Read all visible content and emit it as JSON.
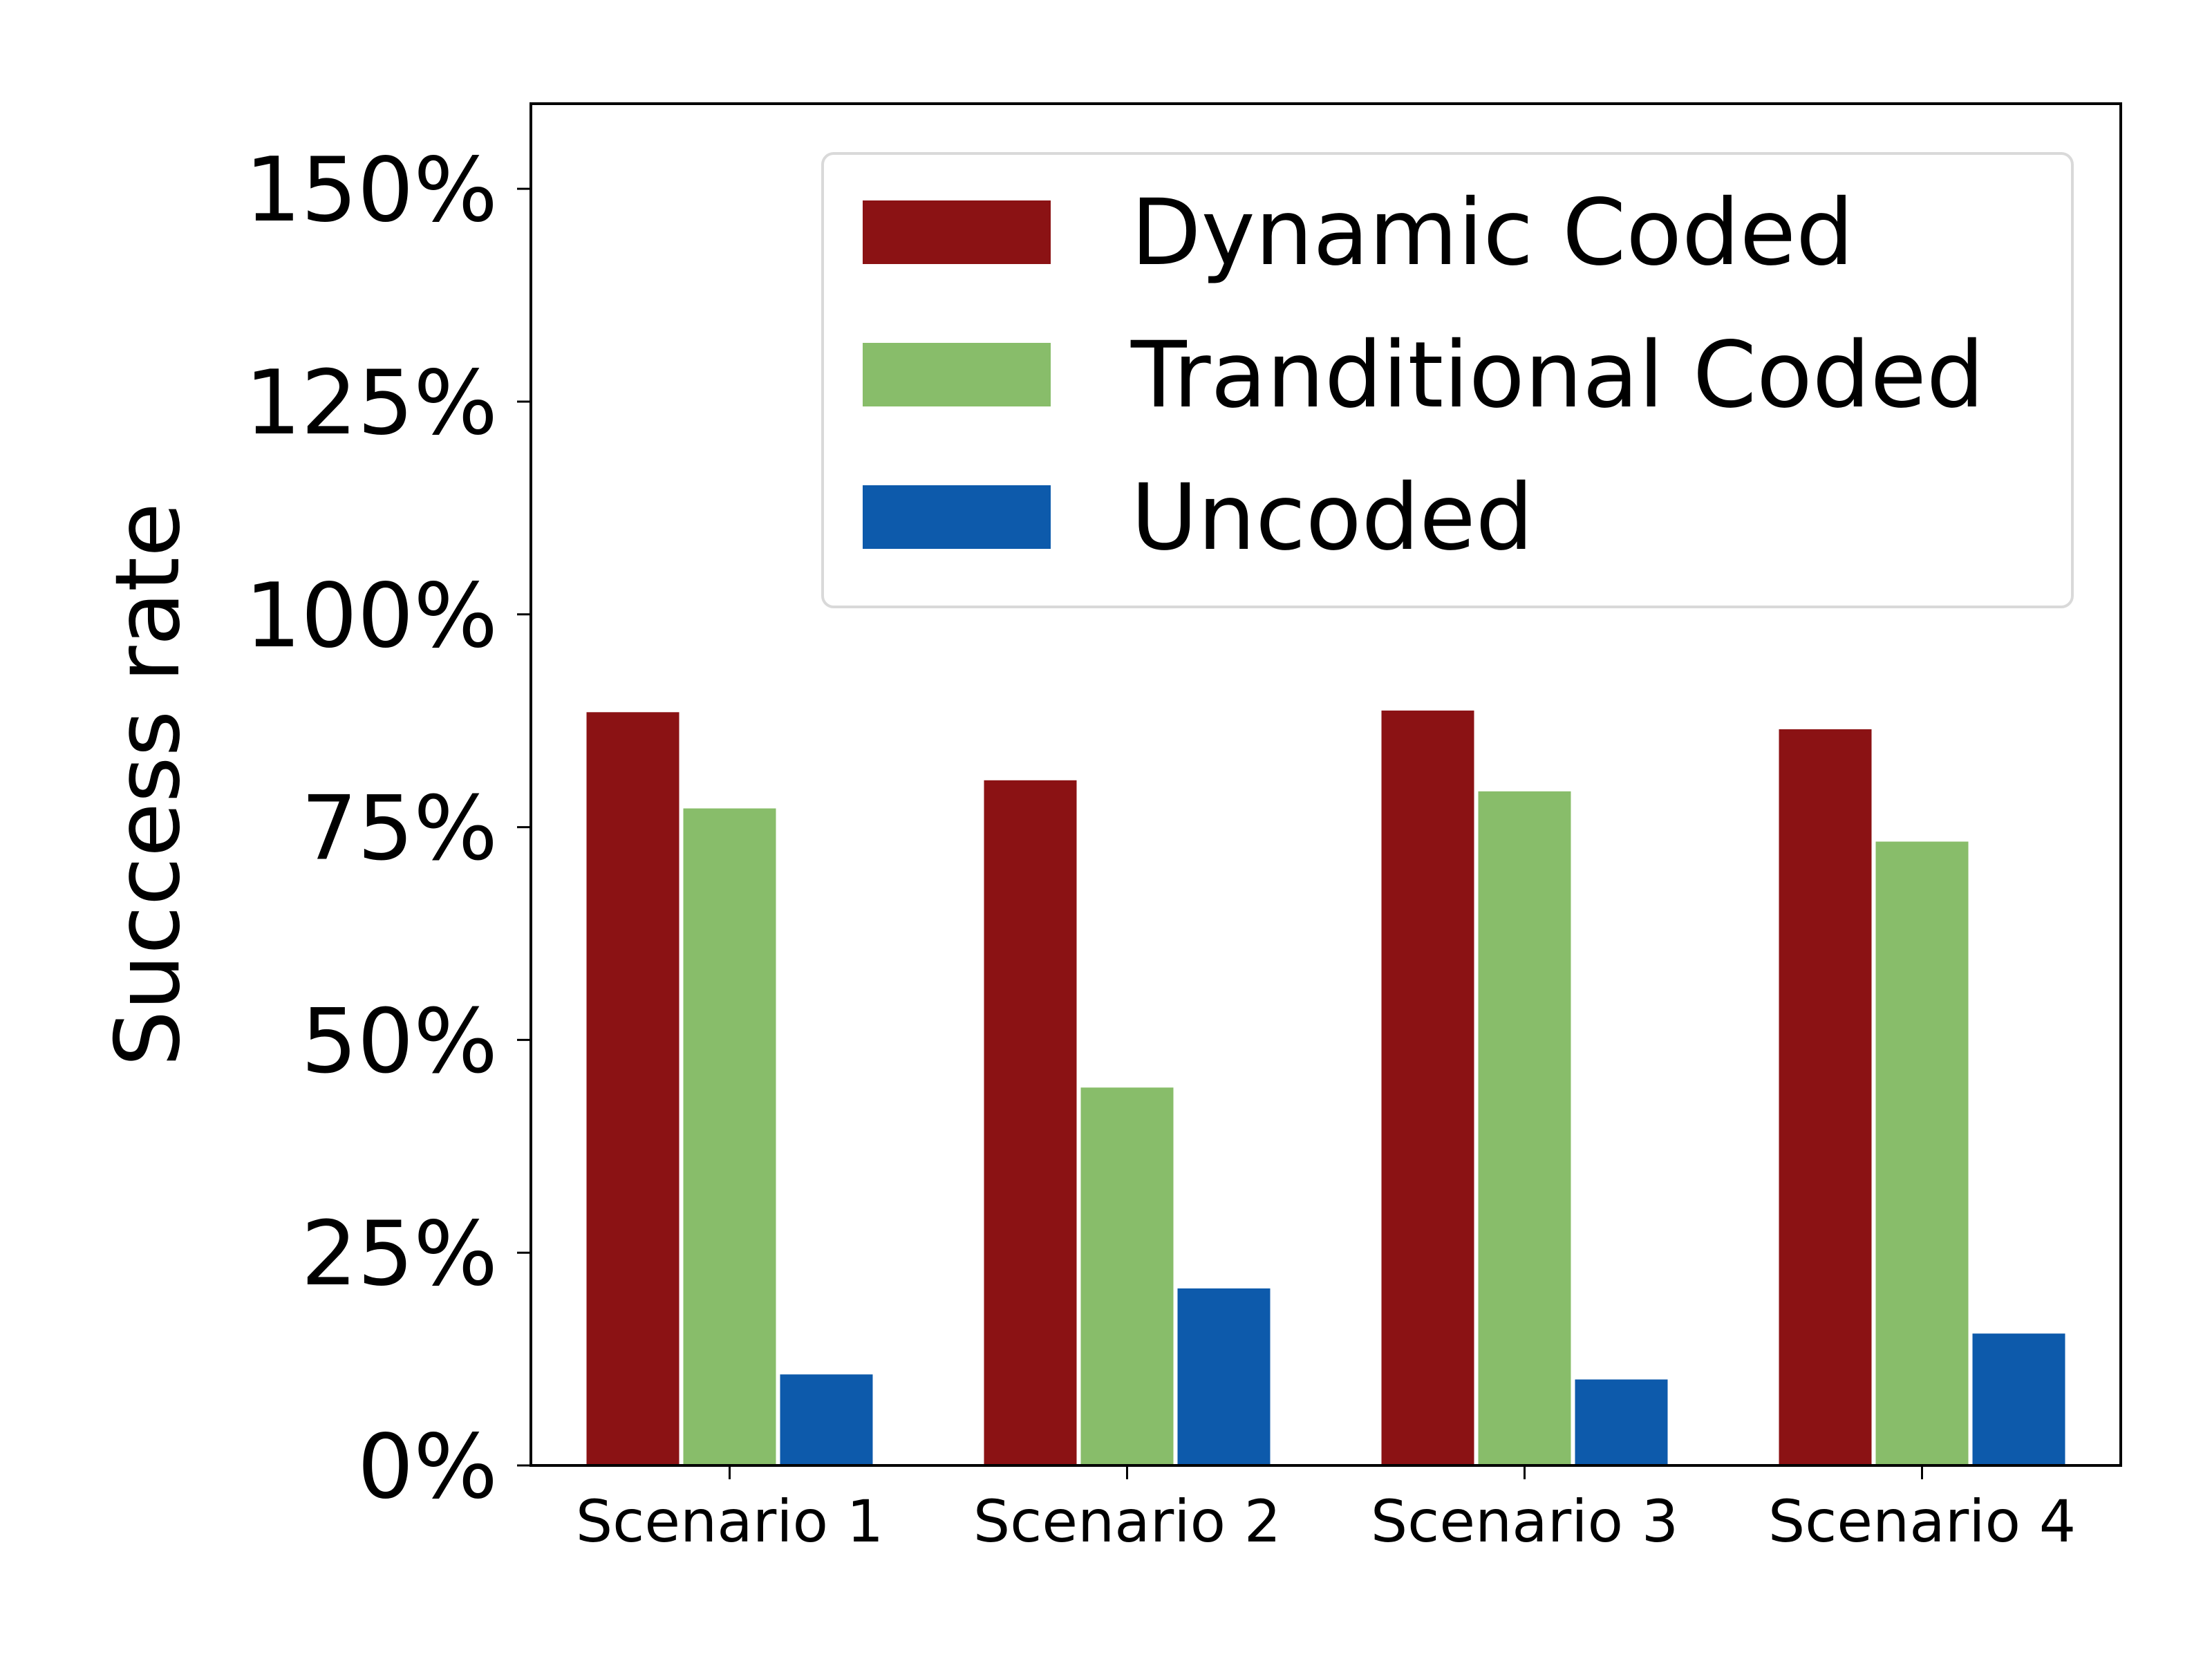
{
  "chart_data": {
    "type": "bar",
    "ylabel": "Success rate",
    "xlabel": "",
    "title": "",
    "categories": [
      "Scenario 1",
      "Scenario 2",
      "Scenario 3",
      "Scenario 4"
    ],
    "ylim": [
      0,
      1.6
    ],
    "yticks": [
      0,
      0.25,
      0.5,
      0.75,
      1.0,
      1.25,
      1.5
    ],
    "ytick_labels": [
      "0%",
      "25%",
      "50%",
      "75%",
      "100%",
      "125%",
      "150%"
    ],
    "series": [
      {
        "name": "Dynamic Coded",
        "color": "#8b1214",
        "values": [
          0.885,
          0.805,
          0.887,
          0.865
        ]
      },
      {
        "name": "Tranditional Coded",
        "color": "#88bd6a",
        "values": [
          0.772,
          0.444,
          0.792,
          0.733
        ]
      },
      {
        "name": "Uncoded",
        "color": "#0d5aab",
        "values": [
          0.107,
          0.208,
          0.101,
          0.155
        ]
      }
    ],
    "legend_position": "top-right",
    "grid": false
  }
}
